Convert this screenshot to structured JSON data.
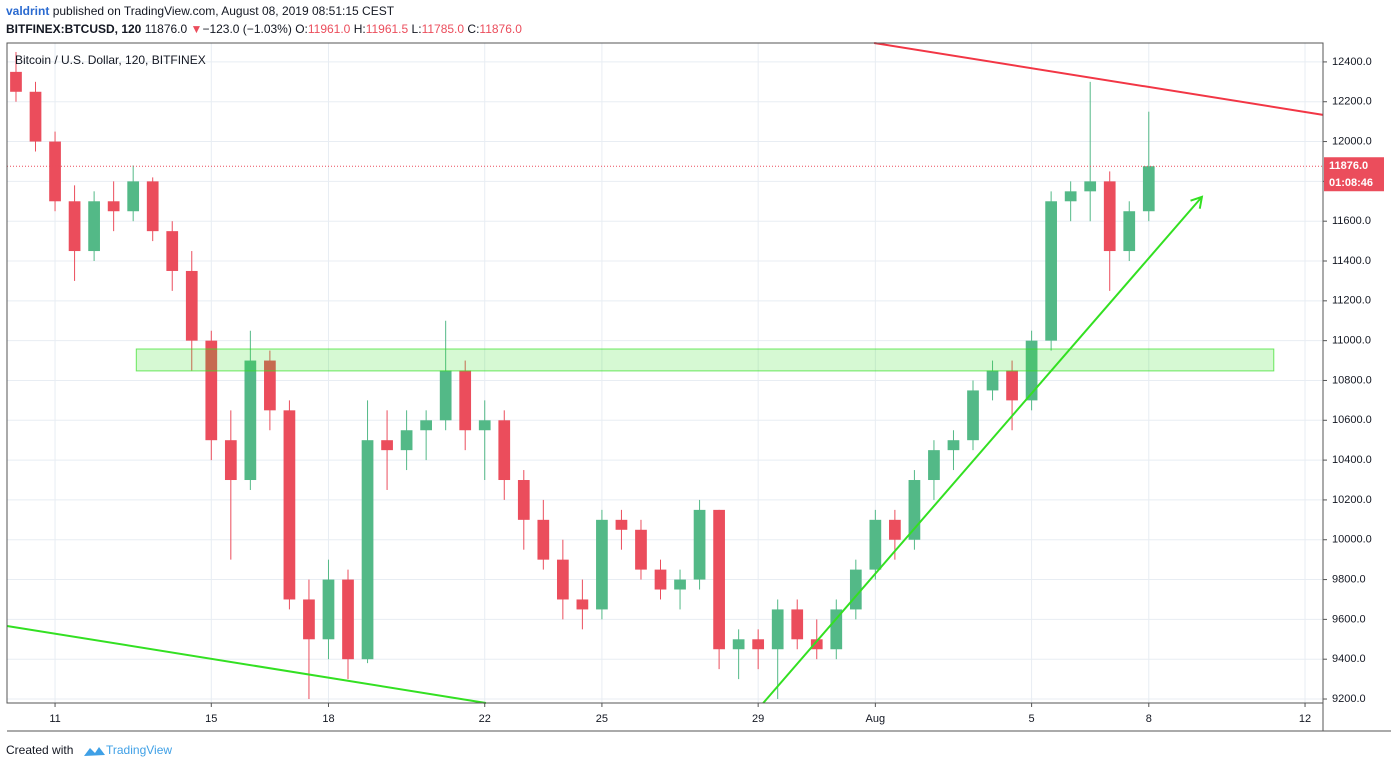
{
  "header": {
    "author": "valdrint",
    "published": "published on TradingView.com, August 08, 2019 08:51:15 CEST",
    "symbol": "BITFINEX:BTCUSD, 120",
    "price": "11876.0",
    "arrow": "▼",
    "change": "−123.0 (−1.03%)",
    "o_label": "O:",
    "o": "11961.0",
    "h_label": "H:",
    "h": "11961.5",
    "l_label": "L:",
    "l": "11785.0",
    "c_label": "C:",
    "c": "11876.0"
  },
  "footer": {
    "text": "Created with",
    "brand": "TradingView"
  },
  "chart_data": {
    "type": "candlestick",
    "legend": "Bitcoin / U.S. Dollar, 120, BITFINEX",
    "up_color": "#53b987",
    "down_color": "#eb4d5c",
    "grid": true,
    "x": [
      10,
      10.5,
      11,
      11.5,
      12,
      12.5,
      13,
      13.5,
      14,
      14.5,
      15,
      15.5,
      16,
      16.5,
      17,
      17.5,
      18,
      18.5,
      19,
      19.5,
      20,
      20.5,
      21,
      21.5,
      22,
      22.5,
      23,
      23.5,
      24,
      24.5,
      25,
      25.5,
      26,
      26.5,
      27,
      27.5,
      28,
      28.5,
      29,
      29.5,
      30,
      30.5,
      31,
      31.5,
      32,
      32.5,
      33,
      33.5,
      34,
      34.5,
      35,
      35.5,
      36,
      36.5,
      37,
      37.5,
      38,
      38.5,
      39
    ],
    "open": [
      12350,
      12250,
      12000,
      11700,
      11450,
      11700,
      11650,
      11800,
      11550,
      11350,
      11000,
      10500,
      10300,
      10900,
      10650,
      9700,
      9500,
      9800,
      9400,
      10500,
      10450,
      10550,
      10600,
      10850,
      10550,
      10600,
      10300,
      10100,
      9900,
      9700,
      9650,
      10100,
      10050,
      9850,
      9750,
      9800,
      10150,
      9450,
      9500,
      9450,
      9650,
      9500,
      9450,
      9650,
      9850,
      10100,
      10000,
      10300,
      10450,
      10500,
      10750,
      10850,
      10700,
      11000,
      11700,
      11750,
      11800,
      11450,
      11650
    ],
    "high": [
      12450,
      12300,
      12050,
      11780,
      11750,
      11800,
      11880,
      11820,
      11600,
      11450,
      11050,
      10650,
      11050,
      10950,
      10700,
      9800,
      9900,
      9850,
      10700,
      10650,
      10650,
      10650,
      11100,
      10900,
      10700,
      10650,
      10350,
      10200,
      10000,
      9800,
      10150,
      10150,
      10100,
      9900,
      9850,
      10200,
      10150,
      9550,
      9550,
      9700,
      9700,
      9600,
      9700,
      9900,
      10150,
      10150,
      10350,
      10500,
      10550,
      10800,
      10900,
      10900,
      11050,
      11750,
      11800,
      12300,
      11850,
      11700,
      12150
    ],
    "low": [
      12200,
      11950,
      11650,
      11300,
      11400,
      11550,
      11600,
      11500,
      11250,
      10850,
      10400,
      9900,
      10250,
      10550,
      9650,
      9200,
      9400,
      9300,
      9380,
      10250,
      10350,
      10400,
      10550,
      10450,
      10300,
      10200,
      9950,
      9850,
      9600,
      9550,
      9600,
      9950,
      9800,
      9700,
      9650,
      9750,
      9350,
      9300,
      9350,
      9200,
      9450,
      9400,
      9400,
      9600,
      9800,
      9900,
      9950,
      10200,
      10350,
      10450,
      10700,
      10550,
      10650,
      10950,
      11600,
      11600,
      11250,
      11400,
      11600
    ],
    "close": [
      12250,
      12000,
      11700,
      11450,
      11700,
      11650,
      11800,
      11550,
      11350,
      11000,
      10500,
      10300,
      10900,
      10650,
      9700,
      9500,
      9800,
      9400,
      10500,
      10450,
      10550,
      10600,
      10850,
      10550,
      10600,
      10300,
      10100,
      9900,
      9700,
      9650,
      10100,
      10050,
      9850,
      9750,
      9800,
      10150,
      9450,
      9500,
      9450,
      9650,
      9500,
      9450,
      9650,
      9850,
      10100,
      10000,
      10300,
      10450,
      10500,
      10750,
      10850,
      10700,
      11000,
      11700,
      11750,
      11800,
      11450,
      11650,
      11876
    ],
    "xlim": [
      9.77,
      43.46
    ],
    "ylim": [
      9180,
      12495
    ],
    "xticks": [
      11,
      15,
      18,
      22,
      25,
      29,
      {
        "value": 32,
        "label": "Aug"
      },
      {
        "value": 36,
        "label": "5"
      },
      {
        "value": 39,
        "label": "8"
      },
      {
        "value": 43,
        "label": "12"
      }
    ],
    "yticks": [
      {
        "value": 9200,
        "label": "9200.0"
      },
      {
        "value": 9400,
        "label": "9400.0"
      },
      {
        "value": 9600,
        "label": "9600.0"
      },
      {
        "value": 9800,
        "label": "9800.0"
      },
      {
        "value": 10000,
        "label": "10000.0"
      },
      {
        "value": 10200,
        "label": "10200.0"
      },
      {
        "value": 10400,
        "label": "10400.0"
      },
      {
        "value": 10600,
        "label": "10600.0"
      },
      {
        "value": 10800,
        "label": "10800.0"
      },
      {
        "value": 11000,
        "label": "11000.0"
      },
      {
        "value": 11200,
        "label": "11200.0"
      },
      {
        "value": 11400,
        "label": "11400.0"
      },
      {
        "value": 11600,
        "label": "11600.0"
      },
      {
        "value": 11800,
        "label": "11800.0"
      },
      {
        "value": 12000,
        "label": "12000.0"
      },
      {
        "value": 12200,
        "label": "12200.0"
      },
      {
        "value": 12400,
        "label": "12400.0"
      }
    ],
    "last_price": 11876,
    "last_price_label": "11876.0",
    "countdown": "01:08:46",
    "lines": [
      {
        "color": "#f23645",
        "x": [
          31.97,
          43.46
        ],
        "y": [
          12495,
          12134
        ]
      },
      {
        "color": "#33e022",
        "x": [
          9.77,
          22.03
        ],
        "y": [
          9567,
          9180
        ]
      },
      {
        "color": "#33e022",
        "x": [
          29.13,
          40.36
        ],
        "y": [
          9180,
          11722
        ],
        "arrow": true
      }
    ],
    "zone": {
      "color": "#33e022",
      "x": [
        13.08,
        42.2
      ],
      "y": [
        10848,
        10958
      ]
    }
  }
}
